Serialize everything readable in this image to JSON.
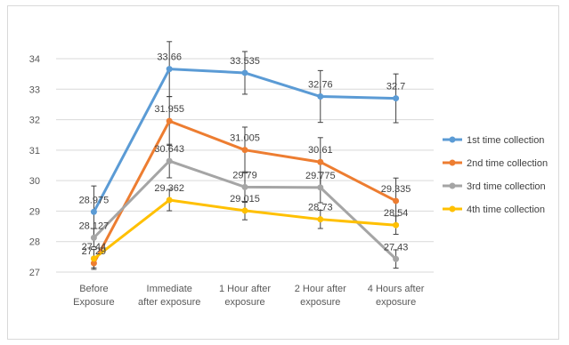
{
  "chart_data": {
    "type": "line",
    "categories": [
      [
        "Before",
        "Exposure"
      ],
      [
        "Immediate",
        "after exposure"
      ],
      [
        "1 Hour after",
        "exposure"
      ],
      [
        "2 Hour after",
        "exposure"
      ],
      [
        "4 Hours after",
        "exposure"
      ]
    ],
    "ylim": [
      27,
      34
    ],
    "yticks": [
      27,
      28,
      29,
      30,
      31,
      32,
      33,
      34
    ],
    "grid": true,
    "legend_position": "right",
    "series": [
      {
        "name": "1st time collection",
        "color": "#5b9bd5",
        "values": [
          28.975,
          33.66,
          33.535,
          32.76,
          32.7
        ],
        "labels": [
          "28.975",
          "33.66",
          "33.535",
          "32.76",
          "32.7"
        ],
        "error": [
          0.85,
          0.9,
          0.7,
          0.85,
          0.8
        ]
      },
      {
        "name": "2nd time collection",
        "color": "#ed7d31",
        "values": [
          27.29,
          31.955,
          31.005,
          30.61,
          29.335
        ],
        "labels": [
          "27.29",
          "31.955",
          "31.005",
          "30.61",
          "29.335"
        ],
        "error": [
          0.2,
          0.8,
          0.75,
          0.8,
          0.75
        ]
      },
      {
        "name": "3rd time collection",
        "color": "#a5a5a5",
        "values": [
          28.127,
          30.643,
          29.79,
          29.775,
          27.43
        ],
        "labels": [
          "28.127",
          "30.643",
          "29.79",
          "29.775",
          "27.43"
        ],
        "error": [
          0.3,
          0.55,
          0.5,
          0.5,
          0.3
        ]
      },
      {
        "name": "4th time collection",
        "color": "#ffc000",
        "values": [
          27.44,
          29.362,
          29.015,
          28.73,
          28.54
        ],
        "labels": [
          "27.44",
          "29.362",
          "29.015",
          "28.73",
          "28.54"
        ],
        "error": [
          0.3,
          0.35,
          0.3,
          0.3,
          0.3
        ]
      }
    ]
  }
}
